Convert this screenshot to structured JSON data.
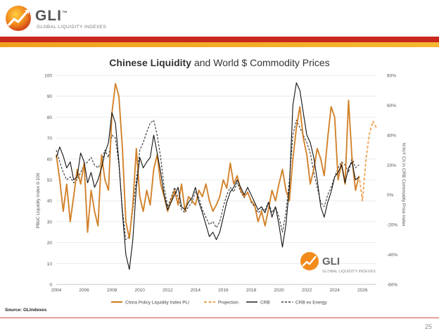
{
  "brand": {
    "name": "GLI",
    "tm": "™",
    "subtitle": "GLOBAL LIQUIDITY INDEXES"
  },
  "page": {
    "source": "Source: GLIndexes",
    "number": "25"
  },
  "colors": {
    "pli": "#d2822a",
    "projection": "#efa85a",
    "crb": "#111111",
    "crb_ex": "#333333",
    "red_bar": "#c8281e",
    "orange_bar": "#f0a020"
  },
  "chart_data": {
    "type": "line",
    "title": "Chinese Liquidity and World $ Commodity Prices",
    "title_bold_part": "Chinese Liquidity",
    "title_rest": "and World $ Commodity Prices",
    "xlabel": "",
    "ylabel_left": "PBoC Liquidity Index 0-100",
    "ylabel_right": "%YoY Ch in CRB Commodity Price Index",
    "xlim": [
      2004,
      2027
    ],
    "ylim_left": [
      0,
      100
    ],
    "ylim_right": [
      -60,
      80
    ],
    "x_ticks": [
      "2004",
      "2006",
      "2008",
      "2010",
      "2012",
      "2014",
      "2016",
      "2018",
      "2020",
      "2022",
      "2024",
      "2026"
    ],
    "y_ticks_left": [
      "0",
      "10",
      "20",
      "30",
      "40",
      "50",
      "60",
      "70",
      "80",
      "90",
      "100"
    ],
    "y_ticks_right": [
      "-60%",
      "-40%",
      "-20%",
      "0%",
      "20%",
      "40%",
      "60%",
      "80%"
    ],
    "legend": [
      "China Policy Liquidity Index PLI",
      "Projection",
      "CRB",
      "CRB ex Energy"
    ],
    "legend_position": "bottom",
    "series": [
      {
        "name": "China Policy Liquidity Index PLI",
        "axis": "left",
        "style": "solid",
        "x": [
          2004.0,
          2004.25,
          2004.5,
          2004.75,
          2005.0,
          2005.25,
          2005.5,
          2005.75,
          2006.0,
          2006.25,
          2006.5,
          2006.75,
          2007.0,
          2007.25,
          2007.5,
          2007.75,
          2008.0,
          2008.25,
          2008.5,
          2008.75,
          2009.0,
          2009.25,
          2009.5,
          2009.75,
          2010.0,
          2010.25,
          2010.5,
          2010.75,
          2011.0,
          2011.25,
          2011.5,
          2011.75,
          2012.0,
          2012.25,
          2012.5,
          2012.75,
          2013.0,
          2013.25,
          2013.5,
          2013.75,
          2014.0,
          2014.25,
          2014.5,
          2014.75,
          2015.0,
          2015.25,
          2015.5,
          2015.75,
          2016.0,
          2016.25,
          2016.5,
          2016.75,
          2017.0,
          2017.25,
          2017.5,
          2017.75,
          2018.0,
          2018.25,
          2018.5,
          2018.75,
          2019.0,
          2019.25,
          2019.5,
          2019.75,
          2020.0,
          2020.25,
          2020.5,
          2020.75,
          2021.0,
          2021.25,
          2021.5,
          2021.75,
          2022.0,
          2022.25,
          2022.5,
          2022.75,
          2023.0,
          2023.25,
          2023.5,
          2023.75,
          2024.0,
          2024.25,
          2024.5,
          2024.75,
          2025.0,
          2025.25,
          2025.5,
          2025.75
        ],
        "values": [
          62,
          50,
          35,
          48,
          30,
          42,
          55,
          48,
          58,
          25,
          45,
          35,
          28,
          62,
          50,
          45,
          82,
          96,
          90,
          65,
          30,
          22,
          38,
          65,
          42,
          35,
          45,
          38,
          55,
          62,
          48,
          42,
          35,
          40,
          45,
          38,
          48,
          35,
          42,
          40,
          38,
          45,
          42,
          48,
          40,
          35,
          38,
          42,
          50,
          46,
          58,
          48,
          52,
          45,
          42,
          44,
          40,
          38,
          30,
          35,
          28,
          36,
          45,
          40,
          48,
          55,
          45,
          40,
          60,
          75,
          85,
          70,
          62,
          48,
          55,
          65,
          60,
          52,
          70,
          85,
          80,
          50,
          58,
          48,
          88,
          60,
          45,
          52
        ]
      },
      {
        "name": "Projection",
        "axis": "left",
        "style": "dashed",
        "x": [
          2025.75,
          2026.0,
          2026.25,
          2026.5,
          2026.75,
          2027.0
        ],
        "values": [
          52,
          40,
          60,
          72,
          78,
          75
        ]
      },
      {
        "name": "CRB",
        "axis": "right",
        "style": "solid",
        "x": [
          2004.0,
          2004.25,
          2004.5,
          2004.75,
          2005.0,
          2005.25,
          2005.5,
          2005.75,
          2006.0,
          2006.25,
          2006.5,
          2006.75,
          2007.0,
          2007.25,
          2007.5,
          2007.75,
          2008.0,
          2008.25,
          2008.5,
          2008.75,
          2009.0,
          2009.25,
          2009.5,
          2009.75,
          2010.0,
          2010.25,
          2010.5,
          2010.75,
          2011.0,
          2011.25,
          2011.5,
          2011.75,
          2012.0,
          2012.25,
          2012.5,
          2012.75,
          2013.0,
          2013.25,
          2013.5,
          2013.75,
          2014.0,
          2014.25,
          2014.5,
          2014.75,
          2015.0,
          2015.25,
          2015.5,
          2015.75,
          2016.0,
          2016.25,
          2016.5,
          2016.75,
          2017.0,
          2017.25,
          2017.5,
          2017.75,
          2018.0,
          2018.25,
          2018.5,
          2018.75,
          2019.0,
          2019.25,
          2019.5,
          2019.75,
          2020.0,
          2020.25,
          2020.5,
          2020.75,
          2021.0,
          2021.25,
          2021.5,
          2021.75,
          2022.0,
          2022.25,
          2022.5,
          2022.75,
          2023.0,
          2023.25,
          2023.5,
          2023.75,
          2024.0,
          2024.25,
          2024.5,
          2024.75,
          2025.0,
          2025.25,
          2025.5,
          2025.75
        ],
        "values": [
          25,
          32,
          26,
          18,
          22,
          10,
          12,
          28,
          22,
          8,
          15,
          5,
          10,
          18,
          28,
          35,
          55,
          48,
          22,
          -12,
          -40,
          -50,
          -30,
          5,
          25,
          18,
          22,
          25,
          40,
          28,
          15,
          0,
          -10,
          -5,
          0,
          5,
          -8,
          -10,
          -5,
          -2,
          5,
          -5,
          -12,
          -20,
          -28,
          -25,
          -30,
          -25,
          -15,
          -5,
          2,
          5,
          10,
          5,
          0,
          5,
          0,
          -5,
          -10,
          -8,
          -12,
          -5,
          -15,
          -8,
          -20,
          -35,
          -20,
          5,
          60,
          75,
          70,
          55,
          40,
          35,
          25,
          10,
          -8,
          -15,
          -5,
          2,
          12,
          15,
          20,
          8,
          18,
          22,
          10,
          12
        ]
      },
      {
        "name": "CRB ex Energy",
        "axis": "right",
        "style": "dashed",
        "x": [
          2004.0,
          2004.25,
          2004.5,
          2004.75,
          2005.0,
          2005.25,
          2005.5,
          2005.75,
          2006.0,
          2006.25,
          2006.5,
          2006.75,
          2007.0,
          2007.25,
          2007.5,
          2007.75,
          2008.0,
          2008.25,
          2008.5,
          2008.75,
          2009.0,
          2009.25,
          2009.5,
          2009.75,
          2010.0,
          2010.25,
          2010.5,
          2010.75,
          2011.0,
          2011.25,
          2011.5,
          2011.75,
          2012.0,
          2012.25,
          2012.5,
          2012.75,
          2013.0,
          2013.25,
          2013.5,
          2013.75,
          2014.0,
          2014.25,
          2014.5,
          2014.75,
          2015.0,
          2015.25,
          2015.5,
          2015.75,
          2016.0,
          2016.25,
          2016.5,
          2016.75,
          2017.0,
          2017.25,
          2017.5,
          2017.75,
          2018.0,
          2018.25,
          2018.5,
          2018.75,
          2019.0,
          2019.25,
          2019.5,
          2019.75,
          2020.0,
          2020.25,
          2020.5,
          2020.75,
          2021.0,
          2021.25,
          2021.5,
          2021.75,
          2022.0,
          2022.25,
          2022.5,
          2022.75,
          2023.0,
          2023.25,
          2023.5,
          2023.75,
          2024.0,
          2024.25,
          2024.5,
          2024.75,
          2025.0,
          2025.25,
          2025.5,
          2025.75
        ],
        "values": [
          30,
          22,
          15,
          10,
          12,
          8,
          10,
          15,
          20,
          22,
          25,
          20,
          18,
          22,
          30,
          25,
          40,
          38,
          20,
          -10,
          -30,
          -28,
          -10,
          10,
          30,
          35,
          42,
          48,
          50,
          40,
          25,
          5,
          -8,
          -2,
          5,
          -2,
          -10,
          -12,
          -8,
          -5,
          2,
          -2,
          -10,
          -15,
          -20,
          -18,
          -22,
          -18,
          -8,
          0,
          5,
          2,
          8,
          2,
          -2,
          2,
          -5,
          -8,
          -12,
          -10,
          -10,
          -5,
          -12,
          -8,
          -15,
          -25,
          -12,
          10,
          40,
          50,
          45,
          40,
          35,
          28,
          15,
          5,
          -5,
          -8,
          0,
          5,
          12,
          18,
          22,
          20,
          15,
          25,
          18,
          20
        ]
      }
    ]
  }
}
